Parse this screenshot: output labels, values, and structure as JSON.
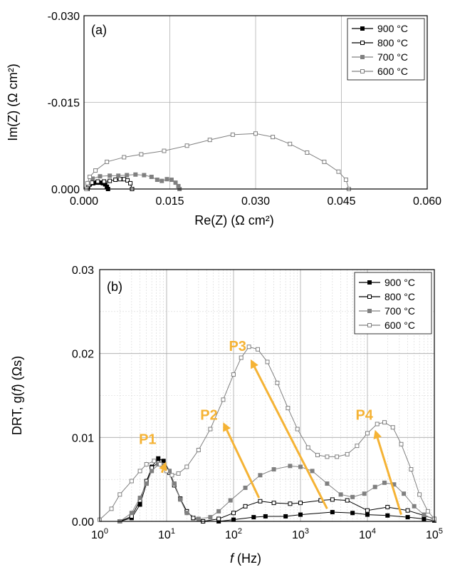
{
  "chart_data": [
    {
      "type": "scatter",
      "panel_label": "(a)",
      "xlabel": "Re(Z) (Ω cm²)",
      "ylabel": "Im(Z) (Ω cm²)",
      "xlim": [
        0.0,
        0.06
      ],
      "ylim": [
        0.0,
        -0.03
      ],
      "x_ticks": [
        0.0,
        0.015,
        0.03,
        0.045,
        0.06
      ],
      "x_tick_labels": [
        "0.000",
        "0.015",
        "0.030",
        "0.045",
        "0.060"
      ],
      "y_ticks": [
        0.0,
        -0.015,
        -0.03
      ],
      "y_tick_labels": [
        "0.000",
        "-0.015",
        "-0.030"
      ],
      "grid": true,
      "legend_position": "top-right",
      "series": [
        {
          "name": "900 °C",
          "color": "#000000",
          "marker": "filled-square",
          "points": [
            [
              0.0005,
              0
            ],
            [
              0.0007,
              -0.0004
            ],
            [
              0.001,
              -0.0008
            ],
            [
              0.0016,
              -0.001
            ],
            [
              0.0022,
              -0.0011
            ],
            [
              0.0028,
              -0.0011
            ],
            [
              0.0033,
              -0.001
            ],
            [
              0.0037,
              -0.0008
            ],
            [
              0.004,
              -0.0004
            ],
            [
              0.0042,
              0
            ]
          ]
        },
        {
          "name": "800 °C",
          "color": "#000000",
          "marker": "open-square",
          "points": [
            [
              0.0006,
              0
            ],
            [
              0.0008,
              -0.0007
            ],
            [
              0.0014,
              -0.0011
            ],
            [
              0.0024,
              -0.0013
            ],
            [
              0.0035,
              -0.0013
            ],
            [
              0.0045,
              -0.0014
            ],
            [
              0.0055,
              -0.0016
            ],
            [
              0.0063,
              -0.0017
            ],
            [
              0.007,
              -0.0017
            ],
            [
              0.0076,
              -0.0015
            ],
            [
              0.0081,
              -0.001
            ],
            [
              0.0084,
              0
            ]
          ]
        },
        {
          "name": "700 °C",
          "color": "#808080",
          "marker": "filled-square",
          "points": [
            [
              0.0005,
              0
            ],
            [
              0.0008,
              -0.001
            ],
            [
              0.0015,
              -0.0018
            ],
            [
              0.0028,
              -0.0022
            ],
            [
              0.0045,
              -0.0023
            ],
            [
              0.006,
              -0.0023
            ],
            [
              0.0075,
              -0.0024
            ],
            [
              0.009,
              -0.0025
            ],
            [
              0.0105,
              -0.0024
            ],
            [
              0.0118,
              -0.0021
            ],
            [
              0.0128,
              -0.0016
            ],
            [
              0.0136,
              -0.0014
            ],
            [
              0.0145,
              -0.0017
            ],
            [
              0.0153,
              -0.0016
            ],
            [
              0.016,
              -0.0011
            ],
            [
              0.0165,
              -0.0005
            ],
            [
              0.0167,
              0
            ]
          ]
        },
        {
          "name": "600 °C",
          "color": "#808080",
          "marker": "open-square",
          "points": [
            [
              0.0004,
              0
            ],
            [
              0.0006,
              -0.001
            ],
            [
              0.001,
              -0.0021
            ],
            [
              0.002,
              -0.0032
            ],
            [
              0.004,
              -0.0047
            ],
            [
              0.007,
              -0.0055
            ],
            [
              0.01,
              -0.006
            ],
            [
              0.014,
              -0.0066
            ],
            [
              0.018,
              -0.0075
            ],
            [
              0.022,
              -0.0085
            ],
            [
              0.026,
              -0.0094
            ],
            [
              0.03,
              -0.0096
            ],
            [
              0.033,
              -0.009
            ],
            [
              0.036,
              -0.0078
            ],
            [
              0.039,
              -0.0063
            ],
            [
              0.042,
              -0.0047
            ],
            [
              0.0445,
              -0.003
            ],
            [
              0.0458,
              -0.0016
            ],
            [
              0.0463,
              0
            ]
          ]
        }
      ]
    },
    {
      "type": "line",
      "panel_label": "(b)",
      "xlabel_italic": "f",
      "xlabel_rest": " (Hz)",
      "ylabel_pre": "DRT, g(",
      "ylabel_italic": "f",
      "ylabel_post": ") (Ωs)",
      "x_scale": "log",
      "xlim": [
        1,
        100000
      ],
      "ylim": [
        0,
        0.03
      ],
      "x_ticks": [
        1,
        10,
        100,
        1000,
        10000,
        100000
      ],
      "x_tick_labels": [
        [
          "10",
          "0"
        ],
        [
          "10",
          "1"
        ],
        [
          "10",
          "2"
        ],
        [
          "10",
          "3"
        ],
        [
          "10",
          "4"
        ],
        [
          "10",
          "5"
        ]
      ],
      "y_ticks": [
        0.0,
        0.01,
        0.02,
        0.03
      ],
      "y_tick_labels": [
        "0.00",
        "0.01",
        "0.02",
        "0.03"
      ],
      "grid": true,
      "legend_position": "top-right",
      "series": [
        {
          "name": "900 °C",
          "color": "#000000",
          "marker": "filled-square",
          "points": [
            [
              2,
              0
            ],
            [
              3,
              0.0004
            ],
            [
              4,
              0.002
            ],
            [
              5,
              0.0045
            ],
            [
              6,
              0.0065
            ],
            [
              7.5,
              0.0075
            ],
            [
              9,
              0.0072
            ],
            [
              11,
              0.006
            ],
            [
              13,
              0.0045
            ],
            [
              16,
              0.0027
            ],
            [
              20,
              0.0012
            ],
            [
              25,
              0.0004
            ],
            [
              35,
              0
            ],
            [
              60,
              0
            ],
            [
              100,
              0.0002
            ],
            [
              200,
              0.0005
            ],
            [
              300,
              0.0006
            ],
            [
              600,
              0.0006
            ],
            [
              1000,
              0.0008
            ],
            [
              3000,
              0.0011
            ],
            [
              6000,
              0.001
            ],
            [
              10000,
              0.0008
            ],
            [
              20000,
              0.0007
            ],
            [
              40000,
              0.0005
            ],
            [
              70000,
              0.0003
            ],
            [
              100000,
              0.0001
            ]
          ]
        },
        {
          "name": "800 °C",
          "color": "#000000",
          "marker": "open-square",
          "points": [
            [
              2,
              0
            ],
            [
              3,
              0.0006
            ],
            [
              4,
              0.0025
            ],
            [
              5,
              0.0048
            ],
            [
              6,
              0.0064
            ],
            [
              7.5,
              0.007
            ],
            [
              9,
              0.0068
            ],
            [
              11,
              0.0058
            ],
            [
              13,
              0.0043
            ],
            [
              16,
              0.0027
            ],
            [
              20,
              0.0012
            ],
            [
              25,
              0.0004
            ],
            [
              35,
              0
            ],
            [
              60,
              0.0003
            ],
            [
              100,
              0.001
            ],
            [
              150,
              0.0018
            ],
            [
              250,
              0.0024
            ],
            [
              400,
              0.0022
            ],
            [
              700,
              0.0021
            ],
            [
              1000,
              0.0022
            ],
            [
              2000,
              0.0025
            ],
            [
              3000,
              0.0026
            ],
            [
              5000,
              0.0025
            ],
            [
              10000,
              0.0013
            ],
            [
              20000,
              0.0017
            ],
            [
              40000,
              0.0013
            ],
            [
              70000,
              0.0007
            ],
            [
              100000,
              0.0003
            ]
          ]
        },
        {
          "name": "700 °C",
          "color": "#808080",
          "marker": "filled-square",
          "points": [
            [
              2,
              0
            ],
            [
              3,
              0.001
            ],
            [
              4,
              0.0028
            ],
            [
              5,
              0.0045
            ],
            [
              6,
              0.006
            ],
            [
              7.5,
              0.0068
            ],
            [
              9,
              0.0067
            ],
            [
              11,
              0.006
            ],
            [
              13,
              0.0045
            ],
            [
              16,
              0.0026
            ],
            [
              20,
              0.001
            ],
            [
              30,
              0.0003
            ],
            [
              45,
              0.0005
            ],
            [
              60,
              0.0012
            ],
            [
              90,
              0.0025
            ],
            [
              150,
              0.004
            ],
            [
              250,
              0.0055
            ],
            [
              400,
              0.0062
            ],
            [
              700,
              0.0066
            ],
            [
              1000,
              0.0065
            ],
            [
              1500,
              0.006
            ],
            [
              2500,
              0.0045
            ],
            [
              4000,
              0.0032
            ],
            [
              6000,
              0.0029
            ],
            [
              9000,
              0.0033
            ],
            [
              13000,
              0.0041
            ],
            [
              18000,
              0.0046
            ],
            [
              25000,
              0.0044
            ],
            [
              35000,
              0.0033
            ],
            [
              50000,
              0.0018
            ],
            [
              70000,
              0.0008
            ],
            [
              100000,
              0.0002
            ]
          ]
        },
        {
          "name": "600 °C",
          "color": "#808080",
          "marker": "open-square",
          "points": [
            [
              1,
              0.0002
            ],
            [
              1.5,
              0.0015
            ],
            [
              2,
              0.0032
            ],
            [
              3,
              0.0048
            ],
            [
              4,
              0.006
            ],
            [
              5,
              0.0068
            ],
            [
              6.5,
              0.0072
            ],
            [
              8,
              0.0068
            ],
            [
              10,
              0.006
            ],
            [
              12,
              0.0055
            ],
            [
              15,
              0.0057
            ],
            [
              20,
              0.0065
            ],
            [
              30,
              0.0085
            ],
            [
              45,
              0.011
            ],
            [
              70,
              0.0145
            ],
            [
              100,
              0.0175
            ],
            [
              130,
              0.0195
            ],
            [
              170,
              0.0208
            ],
            [
              230,
              0.0205
            ],
            [
              320,
              0.019
            ],
            [
              450,
              0.0165
            ],
            [
              650,
              0.0135
            ],
            [
              900,
              0.011
            ],
            [
              1300,
              0.0088
            ],
            [
              1800,
              0.0079
            ],
            [
              2500,
              0.0077
            ],
            [
              3500,
              0.0077
            ],
            [
              5000,
              0.008
            ],
            [
              7000,
              0.009
            ],
            [
              10000,
              0.0105
            ],
            [
              14000,
              0.0116
            ],
            [
              18000,
              0.0118
            ],
            [
              24000,
              0.0112
            ],
            [
              32000,
              0.0092
            ],
            [
              45000,
              0.0062
            ],
            [
              60000,
              0.0032
            ],
            [
              80000,
              0.0012
            ],
            [
              100000,
              0.0003
            ]
          ]
        }
      ],
      "annotations": [
        {
          "text": "P1",
          "color": "#f5b335",
          "x": 5.2,
          "y": 0.0092
        },
        {
          "text": "P2",
          "color": "#f5b335",
          "x": 43,
          "y": 0.0121
        },
        {
          "text": "P3",
          "color": "#f5b335",
          "x": 115,
          "y": 0.0203
        },
        {
          "text": "P4",
          "color": "#f5b335",
          "x": 9000,
          "y": 0.0121
        }
      ],
      "arrows": [
        {
          "from": [
            8.5,
            0.0058
          ],
          "to": [
            9.8,
            0.0071
          ],
          "color": "#f5b335"
        },
        {
          "from": [
            240,
            0.0028
          ],
          "to": [
            70,
            0.0118
          ],
          "color": "#f5b335"
        },
        {
          "from": [
            2500,
            0.0015
          ],
          "to": [
            180,
            0.0193
          ],
          "color": "#f5b335"
        },
        {
          "from": [
            32000,
            0.0008
          ],
          "to": [
            13000,
            0.0109
          ],
          "color": "#f5b335"
        }
      ]
    }
  ]
}
